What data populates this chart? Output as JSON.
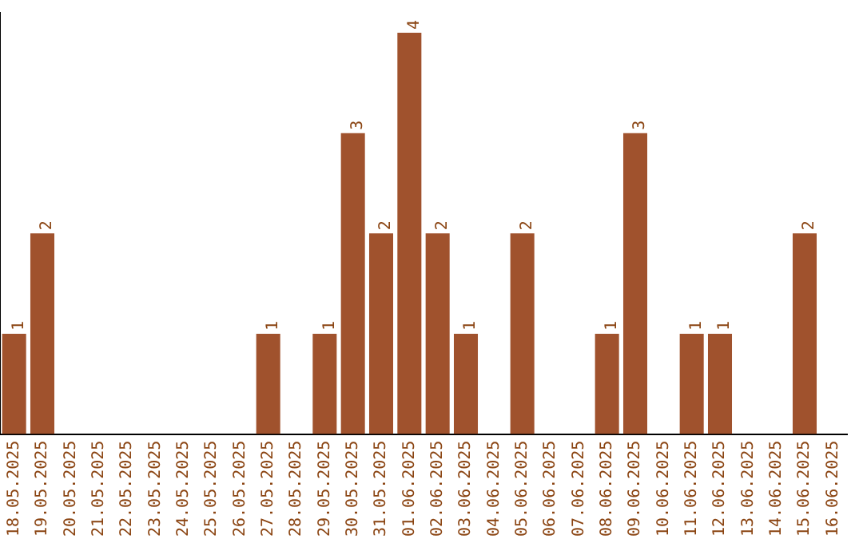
{
  "chart_data": {
    "type": "bar",
    "categories": [
      "18.05.2025",
      "19.05.2025",
      "20.05.2025",
      "21.05.2025",
      "22.05.2025",
      "23.05.2025",
      "24.05.2025",
      "25.05.2025",
      "26.05.2025",
      "27.05.2025",
      "28.05.2025",
      "29.05.2025",
      "30.05.2025",
      "31.05.2025",
      "01.06.2025",
      "02.06.2025",
      "03.06.2025",
      "04.06.2025",
      "05.06.2025",
      "06.06.2025",
      "07.06.2025",
      "08.06.2025",
      "09.06.2025",
      "10.06.2025",
      "11.06.2025",
      "12.06.2025",
      "13.06.2025",
      "14.06.2025",
      "15.06.2025",
      "16.06.2025"
    ],
    "values": [
      1,
      2,
      0,
      0,
      0,
      0,
      0,
      0,
      0,
      1,
      0,
      1,
      3,
      2,
      4,
      2,
      1,
      0,
      2,
      0,
      0,
      1,
      3,
      0,
      1,
      1,
      0,
      0,
      2,
      0
    ],
    "value_labels": [
      "1",
      "2",
      null,
      null,
      null,
      null,
      null,
      null,
      null,
      "1",
      null,
      "1",
      "3",
      "2",
      "4",
      "2",
      "1",
      null,
      "2",
      null,
      null,
      "1",
      "3",
      null,
      "1",
      "1",
      null,
      null,
      "2",
      null
    ],
    "color": "#a0522d",
    "ylim": [
      0,
      4.2
    ],
    "tick_labels": "x",
    "grid": false,
    "legend": false
  }
}
